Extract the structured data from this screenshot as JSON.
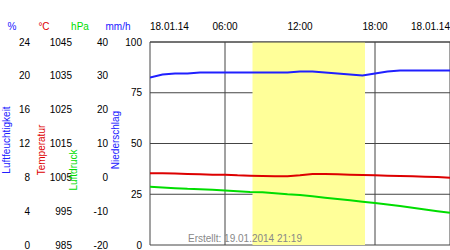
{
  "chart_data": {
    "type": "line",
    "footer": "Erstellt: 19.01.2014 21:19",
    "x": [
      0,
      1,
      2,
      3,
      4,
      5,
      6,
      7,
      8,
      9,
      10,
      11,
      12,
      13,
      14,
      15,
      16,
      17,
      18,
      19,
      20,
      21,
      22,
      23,
      24
    ],
    "xlim": [
      0,
      24
    ],
    "xticks": [
      {
        "value": 0,
        "label": "18.01.14"
      },
      {
        "value": 6,
        "label": "06:00"
      },
      {
        "value": 12,
        "label": "12:00"
      },
      {
        "value": 18,
        "label": "18:00"
      },
      {
        "value": 24,
        "label": "18.01.14"
      }
    ],
    "daylight": [
      8.2,
      17.2
    ],
    "grid": true,
    "axes": [
      {
        "label": "Luftfeuchtigkeit",
        "unit": "%",
        "color": "#2020ff",
        "ylim": [
          0,
          100
        ],
        "yticks": [
          0,
          25,
          50,
          75,
          100
        ]
      },
      {
        "label": "Temperatur",
        "unit": "°C",
        "color": "#dd0000",
        "ylim": [
          -20,
          40
        ],
        "yticks": [
          -20,
          -10,
          0,
          10,
          20,
          30,
          40
        ]
      },
      {
        "label": "Luftdruck",
        "unit": "hPa",
        "color": "#00dd00",
        "ylim": [
          985,
          1045
        ],
        "yticks": [
          985,
          995,
          1005,
          1015,
          1025,
          1035,
          1045
        ]
      },
      {
        "label": "Niederschlag",
        "unit": "mm/h",
        "color": "#2020ff",
        "ylim": [
          0,
          24
        ],
        "yticks": [
          0,
          4,
          8,
          12,
          16,
          20,
          24
        ]
      }
    ],
    "series": [
      {
        "name": "Luftfeuchtigkeit",
        "color": "#2020ff",
        "values": [
          82.5,
          84,
          84.5,
          84.5,
          85,
          85,
          85,
          85,
          85,
          85,
          85,
          85,
          85.5,
          85.5,
          85,
          84.5,
          84,
          83.5,
          84.5,
          85.5,
          86,
          86,
          86,
          86,
          86
        ]
      },
      {
        "name": "Temperatur",
        "color": "#dd0000",
        "values": [
          1.2,
          1.2,
          1.1,
          1.0,
          0.9,
          0.8,
          0.8,
          0.6,
          0.5,
          0.4,
          0.3,
          0.3,
          0.6,
          1.0,
          1.0,
          0.9,
          0.8,
          0.7,
          0.6,
          0.5,
          0.4,
          0.3,
          0.2,
          0.1,
          -0.1
        ]
      },
      {
        "name": "Luftdruck",
        "color": "#00dd00",
        "values": [
          1002.2,
          1002.0,
          1001.8,
          1001.6,
          1001.5,
          1001.3,
          1001.1,
          1000.9,
          1000.7,
          1000.6,
          1000.3,
          1000.0,
          999.8,
          999.4,
          999.0,
          998.6,
          998.2,
          997.8,
          997.4,
          997.0,
          996.5,
          996.0,
          995.5,
          995.0,
          994.5
        ]
      }
    ]
  }
}
